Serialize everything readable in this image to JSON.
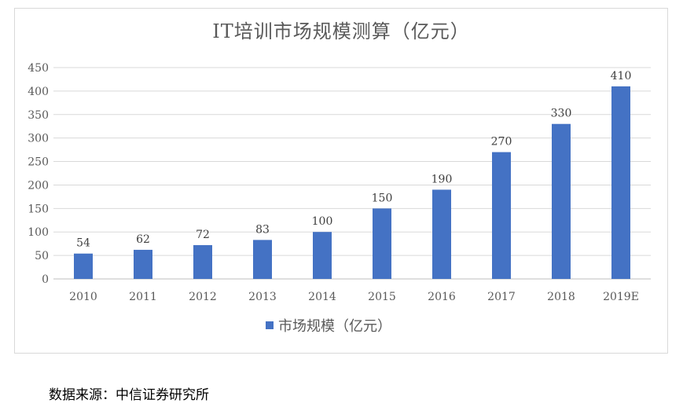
{
  "chart_data": {
    "type": "bar",
    "title": "IT培训市场规模测算（亿元）",
    "categories": [
      "2010",
      "2011",
      "2012",
      "2013",
      "2014",
      "2015",
      "2016",
      "2017",
      "2018",
      "2019E"
    ],
    "series": [
      {
        "name": "市场规模（亿元）",
        "values": [
          54,
          62,
          72,
          83,
          100,
          150,
          190,
          270,
          330,
          410
        ]
      }
    ],
    "ylim": [
      0,
      450
    ],
    "yticks": [
      0,
      50,
      100,
      150,
      200,
      250,
      300,
      350,
      400,
      450
    ],
    "grid": true,
    "legend": "bottom-center",
    "bar_color": "#4472c4",
    "data_labels": true
  },
  "source_note": "数据来源：中信证券研究所"
}
